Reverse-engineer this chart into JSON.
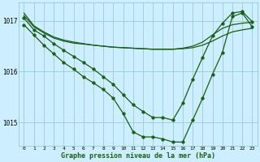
{
  "xlabel": "Graphe pression niveau de la mer (hPa)",
  "xlim_min": -0.5,
  "xlim_max": 23.5,
  "ylim_min": 1014.55,
  "ylim_max": 1017.35,
  "yticks": [
    1015,
    1016,
    1017
  ],
  "xticks": [
    0,
    1,
    2,
    3,
    4,
    5,
    6,
    7,
    8,
    9,
    10,
    11,
    12,
    13,
    14,
    15,
    16,
    17,
    18,
    19,
    20,
    21,
    22,
    23
  ],
  "bg_color": "#cceeff",
  "line_color": "#1a5c1a",
  "grid_color": "#99cccc",
  "line1_x": [
    0,
    1,
    2,
    3,
    4,
    5,
    6,
    7,
    8,
    9,
    10,
    11,
    12,
    13,
    14,
    15,
    16,
    17,
    18,
    19,
    20,
    21,
    22,
    23
  ],
  "line1_y": [
    1017.15,
    1016.9,
    1016.78,
    1016.68,
    1016.62,
    1016.58,
    1016.55,
    1016.52,
    1016.5,
    1016.48,
    1016.47,
    1016.46,
    1016.45,
    1016.44,
    1016.44,
    1016.44,
    1016.45,
    1016.47,
    1016.52,
    1016.6,
    1016.7,
    1016.78,
    1016.82,
    1016.85
  ],
  "line2_x": [
    0,
    1,
    2,
    3,
    4,
    5,
    6,
    7,
    8,
    9,
    10,
    11,
    12,
    13,
    14,
    15,
    16,
    17,
    18,
    19,
    20,
    21,
    22,
    23
  ],
  "line2_y": [
    1017.1,
    1016.88,
    1016.76,
    1016.66,
    1016.6,
    1016.56,
    1016.54,
    1016.52,
    1016.5,
    1016.48,
    1016.47,
    1016.46,
    1016.45,
    1016.44,
    1016.44,
    1016.44,
    1016.46,
    1016.5,
    1016.58,
    1016.72,
    1016.85,
    1016.92,
    1016.95,
    1016.97
  ],
  "line3_x": [
    0,
    1,
    2,
    3,
    4,
    5,
    6,
    7,
    8,
    9,
    10,
    11,
    12,
    13,
    14,
    15,
    16,
    17,
    18,
    19,
    20,
    21,
    22,
    23
  ],
  "line3_y": [
    1017.05,
    1016.82,
    1016.7,
    1016.55,
    1016.42,
    1016.3,
    1016.18,
    1016.05,
    1015.9,
    1015.75,
    1015.55,
    1015.35,
    1015.22,
    1015.1,
    1015.1,
    1015.05,
    1015.38,
    1015.85,
    1016.28,
    1016.7,
    1016.95,
    1017.15,
    1017.18,
    1016.98
  ],
  "line4_x": [
    0,
    1,
    2,
    3,
    4,
    5,
    6,
    7,
    8,
    9,
    10,
    11,
    12,
    13,
    14,
    15,
    16,
    17,
    18,
    19,
    20,
    21,
    22,
    23
  ],
  "line4_y": [
    1016.92,
    1016.72,
    1016.52,
    1016.35,
    1016.18,
    1016.05,
    1015.9,
    1015.78,
    1015.65,
    1015.48,
    1015.18,
    1014.82,
    1014.72,
    1014.72,
    1014.68,
    1014.62,
    1014.62,
    1015.05,
    1015.48,
    1015.95,
    1016.38,
    1017.08,
    1017.15,
    1016.88
  ],
  "line1_has_marker": false,
  "line2_has_marker": false,
  "line3_has_marker": true,
  "line4_has_marker": true,
  "markersize": 2.5
}
